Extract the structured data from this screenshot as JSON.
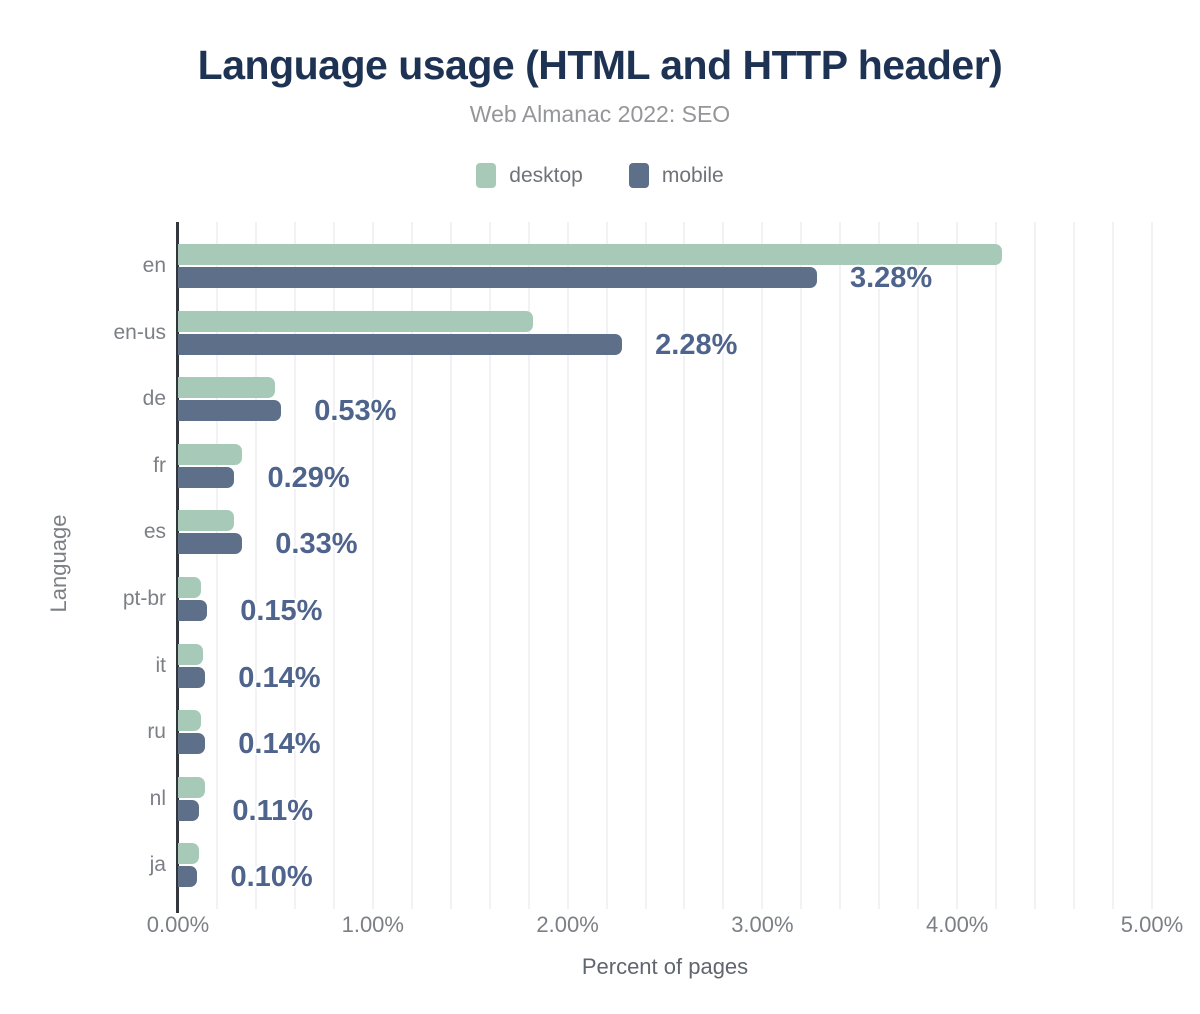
{
  "chart_data": {
    "type": "bar",
    "orientation": "horizontal",
    "title": "Language usage (HTML and HTTP header)",
    "subtitle": "Web Almanac 2022: SEO",
    "xlabel": "Percent of pages",
    "ylabel": "Language",
    "xlim": [
      0,
      5
    ],
    "x_tick_labels": [
      "0.00%",
      "1.00%",
      "2.00%",
      "3.00%",
      "4.00%",
      "5.00%"
    ],
    "gridlines": "vertical, every 0.2%",
    "legend_position": "top",
    "categories": [
      "en",
      "en-us",
      "de",
      "fr",
      "es",
      "pt-br",
      "it",
      "ru",
      "nl",
      "ja"
    ],
    "series": [
      {
        "name": "desktop",
        "color": "#a7cab8",
        "values": [
          4.23,
          1.82,
          0.5,
          0.33,
          0.29,
          0.12,
          0.13,
          0.12,
          0.14,
          0.11
        ]
      },
      {
        "name": "mobile",
        "color": "#5e7089",
        "values": [
          3.28,
          2.28,
          0.53,
          0.29,
          0.33,
          0.15,
          0.14,
          0.14,
          0.11,
          0.1
        ],
        "data_labels": [
          "3.28%",
          "2.28%",
          "0.53%",
          "0.29%",
          "0.33%",
          "0.15%",
          "0.14%",
          "0.14%",
          "0.11%",
          "0.10%"
        ]
      }
    ]
  },
  "colors": {
    "title": "#1e3354",
    "subtitle": "#949699",
    "axis_text": "#7c8086",
    "desktop": "#a7cab8",
    "mobile": "#5e7089",
    "value_label": "#4f648c",
    "gridline": "#f2f2f5",
    "axis_line": "#33373c"
  }
}
